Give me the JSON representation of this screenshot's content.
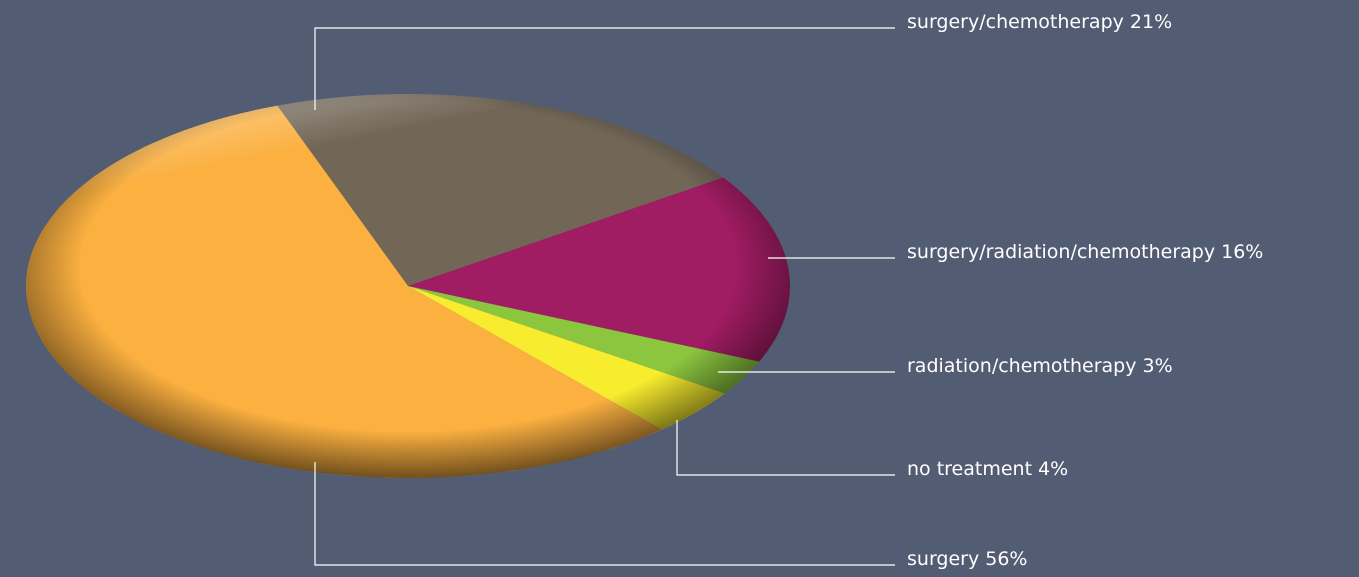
{
  "chart_data": {
    "type": "pie",
    "categories": [
      "surgery/chemotherapy",
      "surgery/radiation/chemotherapy",
      "radiation/chemotherapy",
      "no treatment",
      "surgery"
    ],
    "values": [
      21,
      16,
      3,
      4,
      56
    ],
    "value_labels": [
      "21%",
      "16%",
      "3%",
      "4%",
      "56%"
    ],
    "colors": [
      "#726757",
      "#a01c63",
      "#8cc63f",
      "#f7ec2d",
      "#fbb040"
    ]
  }
}
